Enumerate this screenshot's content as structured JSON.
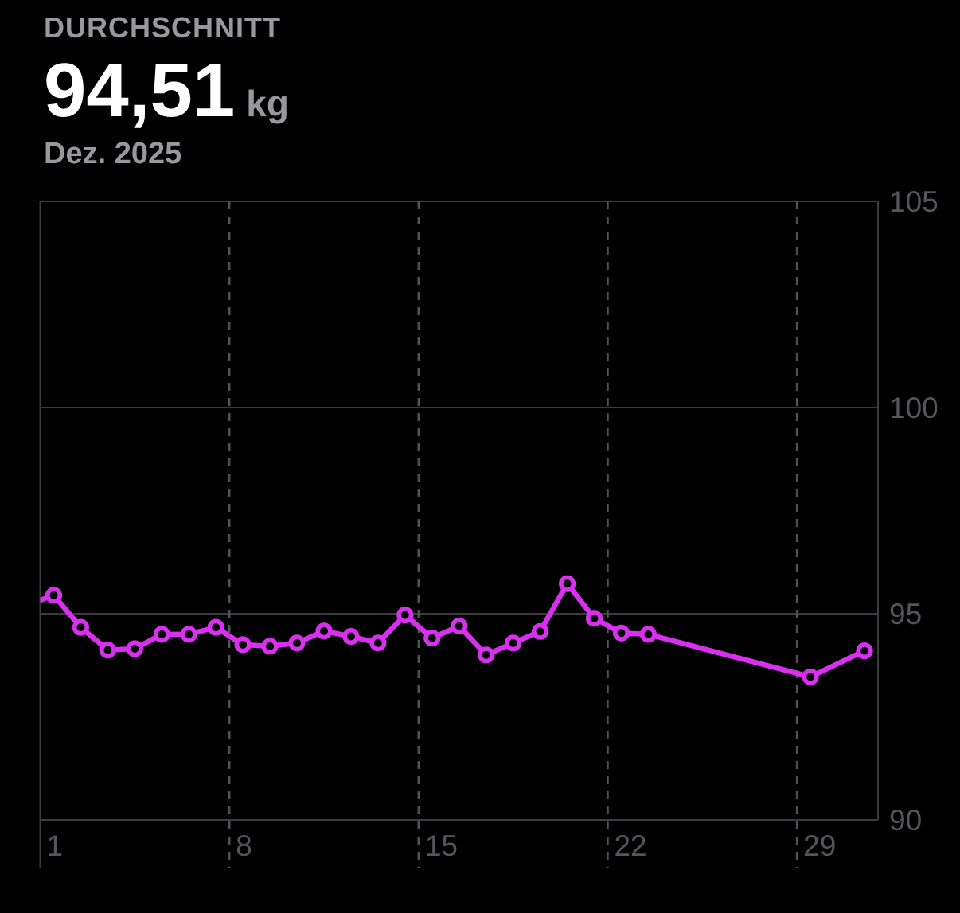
{
  "header": {
    "label": "DURCHSCHNITT",
    "value": "94,51",
    "unit": "kg",
    "period": "Dez. 2025"
  },
  "colors": {
    "background": "#000000",
    "series_line": "#D930F0",
    "marker_fill": "#000000",
    "header_label": "#98989D",
    "value_text": "#FFFFFF",
    "axis_label": "#55555A",
    "gridline_solid": "#3C3C40",
    "gridline_dashed": "#525257"
  },
  "chart_data": {
    "type": "line",
    "title": "",
    "xlabel": "",
    "ylabel": "kg",
    "x_domain": [
      1,
      32
    ],
    "y_domain": [
      90,
      105
    ],
    "x_ticks": [
      1,
      8,
      15,
      22,
      29
    ],
    "y_ticks": [
      105,
      100,
      95,
      90
    ],
    "grid": {
      "horizontal": "solid",
      "vertical": "dashed"
    },
    "legend": "none",
    "marker": "open-circle",
    "lead_in_point": {
      "day": 0,
      "kg": 95.2
    },
    "points": [
      {
        "day": 1,
        "kg": 95.45
      },
      {
        "day": 2,
        "kg": 94.67
      },
      {
        "day": 3,
        "kg": 94.12
      },
      {
        "day": 4,
        "kg": 94.15
      },
      {
        "day": 5,
        "kg": 94.5
      },
      {
        "day": 6,
        "kg": 94.5
      },
      {
        "day": 7,
        "kg": 94.67
      },
      {
        "day": 8,
        "kg": 94.25
      },
      {
        "day": 9,
        "kg": 94.21
      },
      {
        "day": 10,
        "kg": 94.29
      },
      {
        "day": 11,
        "kg": 94.58
      },
      {
        "day": 12,
        "kg": 94.45
      },
      {
        "day": 13,
        "kg": 94.29
      },
      {
        "day": 14,
        "kg": 94.97
      },
      {
        "day": 15,
        "kg": 94.41
      },
      {
        "day": 16,
        "kg": 94.7
      },
      {
        "day": 17,
        "kg": 94.0
      },
      {
        "day": 18,
        "kg": 94.29
      },
      {
        "day": 19,
        "kg": 94.57
      },
      {
        "day": 20,
        "kg": 95.73
      },
      {
        "day": 21,
        "kg": 94.89
      },
      {
        "day": 22,
        "kg": 94.53
      },
      {
        "day": 23,
        "kg": 94.5
      },
      {
        "day": 29,
        "kg": 93.47
      },
      {
        "day": 31,
        "kg": 94.1
      }
    ]
  }
}
